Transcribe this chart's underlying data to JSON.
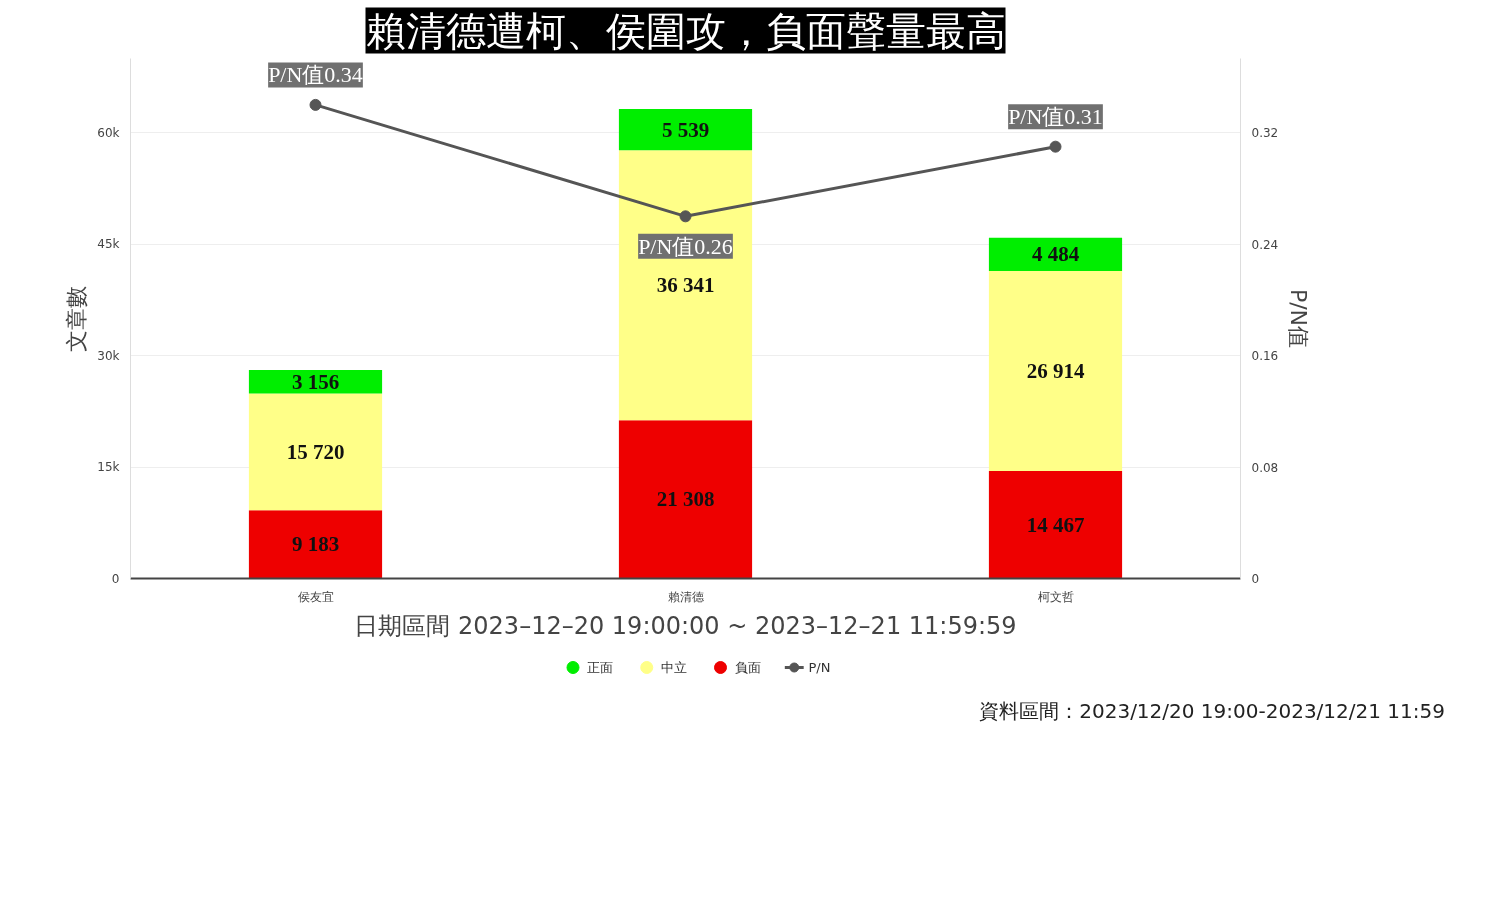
{
  "chart_data": {
    "type": "bar",
    "stacked": true,
    "title": "賴清德遭柯、侯圍攻，負面聲量最高",
    "categories": [
      "侯友宜",
      "賴清德",
      "柯文哲"
    ],
    "series": [
      {
        "name": "負面",
        "color": "#ee0000",
        "values": [
          9183,
          21308,
          14467
        ],
        "value_labels": [
          "9 183",
          "21 308",
          "14 467"
        ]
      },
      {
        "name": "中立",
        "color": "#ffff88",
        "values": [
          15720,
          36341,
          26914
        ],
        "value_labels": [
          "15 720",
          "36 341",
          "26 914"
        ]
      },
      {
        "name": "正面",
        "color": "#00ee00",
        "values": [
          3156,
          5539,
          4484
        ],
        "value_labels": [
          "3 156",
          "5 539",
          "4 484"
        ]
      },
      {
        "name": "P/N",
        "type": "line",
        "axis": "y2",
        "color": "#555555",
        "marker": "circle",
        "values": [
          0.34,
          0.26,
          0.31
        ],
        "value_labels": [
          "P/N值0.34",
          "P/N值0.26",
          "P/N值0.31"
        ]
      }
    ],
    "xlabel": "日期區間 2023–12–20 19:00:00 ~ 2023–12–21 11:59:59",
    "ylabel": "文章數",
    "y2label": "P/N值",
    "ylim": [
      0,
      70000
    ],
    "yticks": [
      {
        "value": 0,
        "label": "0"
      },
      {
        "value": 15000,
        "label": "15k"
      },
      {
        "value": 30000,
        "label": "30k"
      },
      {
        "value": 45000,
        "label": "45k"
      },
      {
        "value": 60000,
        "label": "60k"
      }
    ],
    "y2lim": [
      0,
      0.3733
    ],
    "y2ticks": [
      0,
      0.08,
      0.16,
      0.24,
      0.32
    ],
    "grid": "y",
    "legend": "bottom",
    "annotations": [
      "資料區間：2023/12/20 19:00-2023/12/21 11:59"
    ]
  }
}
